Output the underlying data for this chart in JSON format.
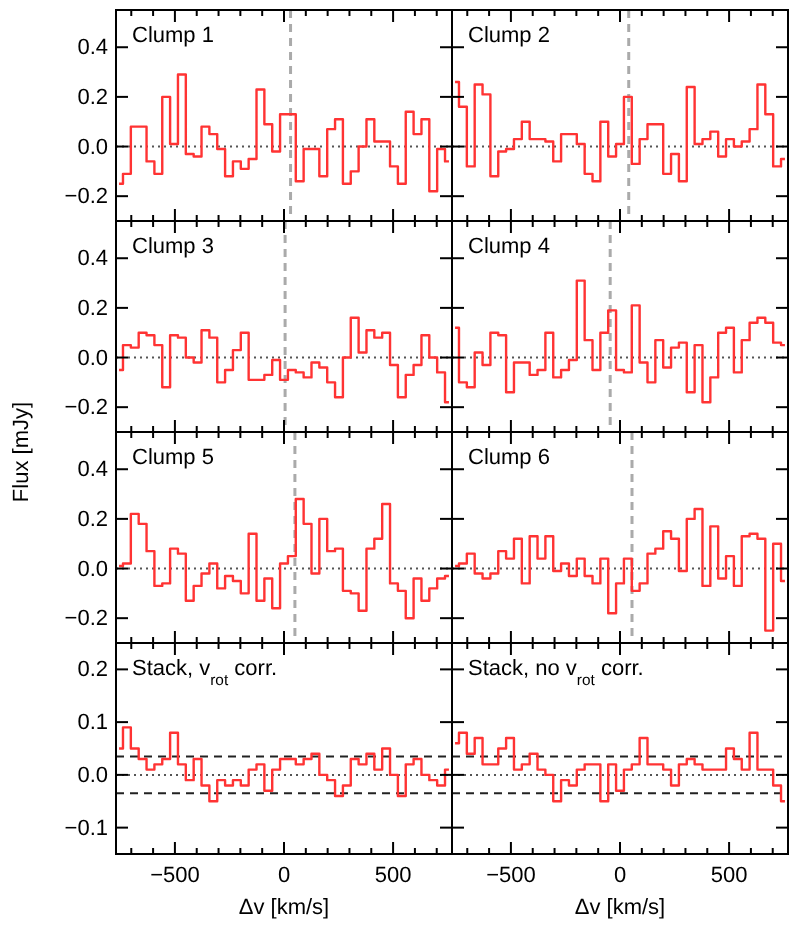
{
  "chart_data": [
    {
      "type": "step",
      "title": "Clump 1",
      "x": [
        -756,
        -720,
        -684,
        -648,
        -612,
        -576,
        -540,
        -504,
        -468,
        -432,
        -396,
        -360,
        -324,
        -288,
        -252,
        -216,
        -180,
        -144,
        -108,
        -72,
        -36,
        0,
        36,
        72,
        108,
        144,
        180,
        216,
        252,
        288,
        324,
        360,
        396,
        432,
        468,
        504,
        540,
        576,
        612,
        648,
        684,
        720,
        756
      ],
      "color": "#ff3333",
      "values": [
        -0.15,
        -0.11,
        0.08,
        0.08,
        -0.06,
        -0.11,
        0.2,
        0.01,
        0.29,
        -0.03,
        -0.04,
        0.08,
        0.05,
        -0.01,
        -0.12,
        -0.06,
        -0.09,
        -0.05,
        0.23,
        0.09,
        -0.02,
        0.13,
        0.13,
        -0.14,
        -0.01,
        -0.01,
        -0.12,
        0.07,
        0.11,
        -0.15,
        -0.1,
        0.0,
        0.11,
        0.02,
        0.02,
        -0.08,
        -0.15,
        0.14,
        0.05,
        0.11,
        -0.18,
        -0.01,
        -0.06
      ],
      "xlim": [
        -770,
        770
      ],
      "ylim": [
        -0.3,
        0.55
      ],
      "xticks": [
        {
          "value": -700,
          "label": null
        },
        {
          "value": -600,
          "label": null
        },
        -500,
        {
          "value": -400,
          "label": null
        },
        {
          "value": -300,
          "label": null
        },
        {
          "value": -200,
          "label": null
        },
        {
          "value": -100,
          "label": null
        },
        0,
        {
          "value": 100,
          "label": null
        },
        {
          "value": 200,
          "label": null
        },
        {
          "value": 300,
          "label": null
        },
        {
          "value": 400,
          "label": null
        },
        500,
        {
          "value": 600,
          "label": null
        },
        {
          "value": 700,
          "label": null
        }
      ],
      "yticks": [
        {
          "value": -0.2,
          "label": "−0.2"
        },
        {
          "value": 0,
          "label": "0.0"
        },
        {
          "value": 0.2,
          "label": "0.2"
        },
        {
          "value": 0.4,
          "label": "0.4"
        }
      ],
      "tick_labels": "y",
      "ref_lines": [
        {
          "axis": "y",
          "value": 0,
          "line_style": "dotted",
          "color": "#555555"
        },
        {
          "axis": "x",
          "value": 30,
          "line_style": "dashed",
          "color": "#aaaaaa"
        }
      ]
    },
    {
      "type": "step",
      "title": "Clump 2",
      "x": [
        -756,
        -720,
        -684,
        -648,
        -612,
        -576,
        -540,
        -504,
        -468,
        -432,
        -396,
        -360,
        -324,
        -288,
        -252,
        -216,
        -180,
        -144,
        -108,
        -72,
        -36,
        0,
        36,
        72,
        108,
        144,
        180,
        216,
        252,
        288,
        324,
        360,
        396,
        432,
        468,
        504,
        540,
        576,
        612,
        648,
        684,
        720,
        756
      ],
      "color": "#ff3333",
      "values": [
        0.26,
        0.16,
        -0.08,
        0.25,
        0.21,
        -0.12,
        -0.02,
        -0.01,
        0.03,
        0.1,
        0.03,
        0.03,
        0.02,
        -0.06,
        0.05,
        0.05,
        0.01,
        -0.11,
        -0.14,
        0.1,
        -0.04,
        0.01,
        0.2,
        -0.07,
        0.03,
        0.09,
        0.09,
        -0.11,
        -0.03,
        -0.14,
        0.24,
        0.01,
        0.03,
        0.06,
        -0.04,
        0.03,
        0.0,
        0.02,
        0.07,
        0.25,
        0.13,
        -0.08,
        -0.05
      ],
      "xlim": [
        -770,
        770
      ],
      "ylim": [
        -0.3,
        0.55
      ],
      "xticks": [
        {
          "value": -700,
          "label": null
        },
        {
          "value": -600,
          "label": null
        },
        -500,
        {
          "value": -400,
          "label": null
        },
        {
          "value": -300,
          "label": null
        },
        {
          "value": -200,
          "label": null
        },
        {
          "value": -100,
          "label": null
        },
        0,
        {
          "value": 100,
          "label": null
        },
        {
          "value": 200,
          "label": null
        },
        {
          "value": 300,
          "label": null
        },
        {
          "value": 400,
          "label": null
        },
        500,
        {
          "value": 600,
          "label": null
        },
        {
          "value": 700,
          "label": null
        }
      ],
      "yticks": [
        -0.2,
        0,
        0.2,
        0.4
      ],
      "tick_labels": false,
      "ref_lines": [
        {
          "axis": "y",
          "value": 0,
          "line_style": "dotted",
          "color": "#555555"
        },
        {
          "axis": "x",
          "value": 40,
          "line_style": "dashed",
          "color": "#aaaaaa"
        }
      ]
    },
    {
      "type": "step",
      "title": "Clump 3",
      "ylabel": "Flux [mJy]",
      "x": [
        -756,
        -720,
        -684,
        -648,
        -612,
        -576,
        -540,
        -504,
        -468,
        -432,
        -396,
        -360,
        -324,
        -288,
        -252,
        -216,
        -180,
        -144,
        -108,
        -72,
        -36,
        0,
        36,
        72,
        108,
        144,
        180,
        216,
        252,
        288,
        324,
        360,
        396,
        432,
        468,
        504,
        540,
        576,
        612,
        648,
        684,
        720,
        756
      ],
      "color": "#ff3333",
      "values": [
        -0.05,
        0.05,
        0.04,
        0.1,
        0.09,
        0.05,
        -0.12,
        0.09,
        0.08,
        0.0,
        -0.02,
        0.11,
        0.08,
        -0.1,
        -0.05,
        0.03,
        0.1,
        -0.09,
        -0.09,
        -0.07,
        -0.01,
        -0.09,
        -0.05,
        -0.06,
        -0.08,
        -0.02,
        -0.04,
        -0.1,
        -0.16,
        0.0,
        0.16,
        0.02,
        0.11,
        0.08,
        0.1,
        -0.03,
        -0.16,
        -0.07,
        -0.03,
        0.09,
        0.0,
        -0.06,
        -0.18
      ],
      "xlim": [
        -770,
        770
      ],
      "ylim": [
        -0.3,
        0.55
      ],
      "xticks": [
        {
          "value": -700,
          "label": null
        },
        {
          "value": -600,
          "label": null
        },
        -500,
        {
          "value": -400,
          "label": null
        },
        {
          "value": -300,
          "label": null
        },
        {
          "value": -200,
          "label": null
        },
        {
          "value": -100,
          "label": null
        },
        0,
        {
          "value": 100,
          "label": null
        },
        {
          "value": 200,
          "label": null
        },
        {
          "value": 300,
          "label": null
        },
        {
          "value": 400,
          "label": null
        },
        500,
        {
          "value": 600,
          "label": null
        },
        {
          "value": 700,
          "label": null
        }
      ],
      "yticks": [
        {
          "value": -0.2,
          "label": "−0.2"
        },
        {
          "value": 0,
          "label": "0.0"
        },
        {
          "value": 0.2,
          "label": "0.2"
        },
        {
          "value": 0.4,
          "label": "0.4"
        }
      ],
      "tick_labels": "y",
      "ref_lines": [
        {
          "axis": "y",
          "value": 0,
          "line_style": "dotted",
          "color": "#555555"
        },
        {
          "axis": "x",
          "value": 5,
          "line_style": "dashed",
          "color": "#aaaaaa"
        }
      ]
    },
    {
      "type": "step",
      "title": "Clump 4",
      "x": [
        -756,
        -720,
        -684,
        -648,
        -612,
        -576,
        -540,
        -504,
        -468,
        -432,
        -396,
        -360,
        -324,
        -288,
        -252,
        -216,
        -180,
        -144,
        -108,
        -72,
        -36,
        0,
        36,
        72,
        108,
        144,
        180,
        216,
        252,
        288,
        324,
        360,
        396,
        432,
        468,
        504,
        540,
        576,
        612,
        648,
        684,
        720,
        756
      ],
      "color": "#ff3333",
      "values": [
        0.12,
        -0.1,
        -0.12,
        0.02,
        -0.03,
        0.1,
        0.09,
        -0.14,
        -0.02,
        -0.02,
        -0.07,
        -0.05,
        0.1,
        -0.08,
        -0.05,
        -0.01,
        0.31,
        0.07,
        -0.05,
        0.1,
        0.19,
        -0.05,
        -0.06,
        0.21,
        -0.02,
        -0.1,
        0.07,
        -0.04,
        0.04,
        0.06,
        -0.14,
        0.05,
        -0.18,
        -0.08,
        0.1,
        0.12,
        -0.06,
        0.07,
        0.14,
        0.16,
        0.14,
        0.06,
        0.05
      ],
      "xlim": [
        -770,
        770
      ],
      "ylim": [
        -0.3,
        0.55
      ],
      "xticks": [
        {
          "value": -700,
          "label": null
        },
        {
          "value": -600,
          "label": null
        },
        -500,
        {
          "value": -400,
          "label": null
        },
        {
          "value": -300,
          "label": null
        },
        {
          "value": -200,
          "label": null
        },
        {
          "value": -100,
          "label": null
        },
        0,
        {
          "value": 100,
          "label": null
        },
        {
          "value": 200,
          "label": null
        },
        {
          "value": 300,
          "label": null
        },
        {
          "value": 400,
          "label": null
        },
        500,
        {
          "value": 600,
          "label": null
        },
        {
          "value": 700,
          "label": null
        }
      ],
      "yticks": [
        -0.2,
        0,
        0.2,
        0.4
      ],
      "tick_labels": false,
      "ref_lines": [
        {
          "axis": "y",
          "value": 0,
          "line_style": "dotted",
          "color": "#555555"
        },
        {
          "axis": "x",
          "value": -45,
          "line_style": "dashed",
          "color": "#aaaaaa"
        }
      ]
    },
    {
      "type": "step",
      "title": "Clump 5",
      "x": [
        -756,
        -720,
        -684,
        -648,
        -612,
        -576,
        -540,
        -504,
        -468,
        -432,
        -396,
        -360,
        -324,
        -288,
        -252,
        -216,
        -180,
        -144,
        -108,
        -72,
        -36,
        0,
        36,
        72,
        108,
        144,
        180,
        216,
        252,
        288,
        324,
        360,
        396,
        432,
        468,
        504,
        540,
        576,
        612,
        648,
        684,
        720,
        756
      ],
      "color": "#ff3333",
      "values": [
        0.01,
        0.02,
        0.22,
        0.18,
        0.07,
        -0.07,
        -0.06,
        0.08,
        0.06,
        -0.13,
        -0.07,
        -0.02,
        0.02,
        -0.08,
        -0.03,
        -0.05,
        -0.1,
        0.14,
        -0.13,
        -0.04,
        -0.16,
        0.02,
        0.05,
        0.28,
        0.18,
        -0.02,
        0.2,
        0.07,
        0.08,
        -0.09,
        -0.1,
        -0.17,
        0.08,
        0.12,
        0.26,
        -0.06,
        -0.09,
        -0.2,
        -0.04,
        -0.13,
        -0.08,
        -0.04,
        -0.03
      ],
      "xlim": [
        -770,
        770
      ],
      "ylim": [
        -0.3,
        0.55
      ],
      "xticks": [
        {
          "value": -700,
          "label": null
        },
        {
          "value": -600,
          "label": null
        },
        -500,
        {
          "value": -400,
          "label": null
        },
        {
          "value": -300,
          "label": null
        },
        {
          "value": -200,
          "label": null
        },
        {
          "value": -100,
          "label": null
        },
        0,
        {
          "value": 100,
          "label": null
        },
        {
          "value": 200,
          "label": null
        },
        {
          "value": 300,
          "label": null
        },
        {
          "value": 400,
          "label": null
        },
        500,
        {
          "value": 600,
          "label": null
        },
        {
          "value": 700,
          "label": null
        }
      ],
      "yticks": [
        {
          "value": -0.2,
          "label": "−0.2"
        },
        {
          "value": 0,
          "label": "0.0"
        },
        {
          "value": 0.2,
          "label": "0.2"
        },
        {
          "value": 0.4,
          "label": "0.4"
        }
      ],
      "tick_labels": "y",
      "ref_lines": [
        {
          "axis": "y",
          "value": 0,
          "line_style": "dotted",
          "color": "#555555"
        },
        {
          "axis": "x",
          "value": 50,
          "line_style": "dashed",
          "color": "#aaaaaa"
        }
      ]
    },
    {
      "type": "step",
      "title": "Clump 6",
      "x": [
        -756,
        -720,
        -684,
        -648,
        -612,
        -576,
        -540,
        -504,
        -468,
        -432,
        -396,
        -360,
        -324,
        -288,
        -252,
        -216,
        -180,
        -144,
        -108,
        -72,
        -36,
        0,
        36,
        72,
        108,
        144,
        180,
        216,
        252,
        288,
        324,
        360,
        396,
        432,
        468,
        504,
        540,
        576,
        612,
        648,
        684,
        720,
        756
      ],
      "color": "#ff3333",
      "values": [
        0.01,
        0.02,
        0.06,
        -0.02,
        -0.04,
        -0.02,
        0.07,
        0.04,
        0.12,
        -0.06,
        0.13,
        0.04,
        0.13,
        -0.01,
        0.02,
        -0.03,
        0.04,
        -0.03,
        -0.06,
        0.04,
        -0.18,
        -0.06,
        0.04,
        -0.09,
        -0.06,
        0.06,
        0.08,
        0.15,
        0.12,
        -0.01,
        0.2,
        0.24,
        -0.07,
        0.17,
        -0.04,
        0.05,
        -0.07,
        0.13,
        0.14,
        0.12,
        -0.25,
        0.1,
        -0.05
      ],
      "xlim": [
        -770,
        770
      ],
      "ylim": [
        -0.3,
        0.55
      ],
      "xticks": [
        {
          "value": -700,
          "label": null
        },
        {
          "value": -600,
          "label": null
        },
        -500,
        {
          "value": -400,
          "label": null
        },
        {
          "value": -300,
          "label": null
        },
        {
          "value": -200,
          "label": null
        },
        {
          "value": -100,
          "label": null
        },
        0,
        {
          "value": 100,
          "label": null
        },
        {
          "value": 200,
          "label": null
        },
        {
          "value": 300,
          "label": null
        },
        {
          "value": 400,
          "label": null
        },
        500,
        {
          "value": 600,
          "label": null
        },
        {
          "value": 700,
          "label": null
        }
      ],
      "yticks": [
        -0.2,
        0,
        0.2,
        0.4
      ],
      "tick_labels": false,
      "ref_lines": [
        {
          "axis": "y",
          "value": 0,
          "line_style": "dotted",
          "color": "#555555"
        },
        {
          "axis": "x",
          "value": 55,
          "line_style": "dashed",
          "color": "#aaaaaa"
        }
      ]
    },
    {
      "type": "step",
      "title": "Stack, v$_{rot}$ corr.",
      "xlabel": "Δv [km/s]",
      "x": [
        -756,
        -720,
        -684,
        -648,
        -612,
        -576,
        -540,
        -504,
        -468,
        -432,
        -396,
        -360,
        -324,
        -288,
        -252,
        -216,
        -180,
        -144,
        -108,
        -72,
        -36,
        0,
        36,
        72,
        108,
        144,
        180,
        216,
        252,
        288,
        324,
        360,
        396,
        432,
        468,
        504,
        540,
        576,
        612,
        648,
        684,
        720,
        756
      ],
      "color": "#ff3333",
      "values": [
        0.05,
        0.09,
        0.05,
        0.03,
        0.01,
        0.02,
        0.03,
        0.08,
        0.02,
        -0.01,
        0.03,
        -0.02,
        -0.05,
        -0.01,
        -0.02,
        -0.01,
        -0.02,
        0.01,
        0.02,
        -0.03,
        0.01,
        0.03,
        0.03,
        0.02,
        0.03,
        0.04,
        0.0,
        -0.01,
        -0.04,
        -0.02,
        0.03,
        0.02,
        0.04,
        0.01,
        0.05,
        0.0,
        -0.04,
        0.02,
        0.03,
        0.0,
        -0.01,
        -0.02,
        0.01
      ],
      "xlim": [
        -770,
        770
      ],
      "ylim": [
        -0.15,
        0.25
      ],
      "xticks": [
        {
          "value": -700,
          "label": null
        },
        {
          "value": -600,
          "label": null
        },
        {
          "value": -500,
          "label": "−500"
        },
        {
          "value": -400,
          "label": null
        },
        {
          "value": -300,
          "label": null
        },
        {
          "value": -200,
          "label": null
        },
        {
          "value": -100,
          "label": null
        },
        0,
        {
          "value": 100,
          "label": null
        },
        {
          "value": 200,
          "label": null
        },
        {
          "value": 300,
          "label": null
        },
        {
          "value": 400,
          "label": null
        },
        500,
        {
          "value": 600,
          "label": null
        },
        {
          "value": 700,
          "label": null
        }
      ],
      "yticks": [
        {
          "value": -0.1,
          "label": "−0.1"
        },
        {
          "value": 0,
          "label": "0.0"
        },
        {
          "value": 0.1,
          "label": "0.1"
        },
        {
          "value": 0.2,
          "label": "0.2"
        }
      ],
      "ref_lines": [
        {
          "axis": "y",
          "value": 0,
          "line_style": "dotted",
          "color": "#555555"
        },
        {
          "axis": "y",
          "value": 0.035,
          "line_style": "dashed",
          "color": "#222222"
        },
        {
          "axis": "y",
          "value": -0.035,
          "line_style": "dashed",
          "color": "#222222"
        }
      ]
    },
    {
      "type": "step",
      "title": "Stack, no v$_{rot}$ corr.",
      "xlabel": "Δv [km/s]",
      "x": [
        -756,
        -720,
        -684,
        -648,
        -612,
        -576,
        -540,
        -504,
        -468,
        -432,
        -396,
        -360,
        -324,
        -288,
        -252,
        -216,
        -180,
        -144,
        -108,
        -72,
        -36,
        0,
        36,
        72,
        108,
        144,
        180,
        216,
        252,
        288,
        324,
        360,
        396,
        432,
        468,
        504,
        540,
        576,
        612,
        648,
        684,
        720,
        756
      ],
      "color": "#ff3333",
      "values": [
        0.06,
        0.08,
        0.04,
        0.07,
        0.02,
        0.02,
        0.05,
        0.07,
        0.01,
        0.02,
        0.04,
        0.01,
        0.0,
        -0.05,
        -0.01,
        -0.02,
        0.01,
        0.02,
        0.02,
        -0.05,
        0.02,
        -0.03,
        0.01,
        0.02,
        0.07,
        0.02,
        0.02,
        0.01,
        -0.02,
        0.02,
        0.03,
        0.02,
        0.01,
        0.01,
        0.01,
        0.05,
        0.03,
        0.01,
        0.08,
        0.01,
        0.01,
        -0.02,
        -0.05
      ],
      "xlim": [
        -770,
        770
      ],
      "ylim": [
        -0.15,
        0.25
      ],
      "xticks": [
        {
          "value": -700,
          "label": null
        },
        {
          "value": -600,
          "label": null
        },
        {
          "value": -500,
          "label": "−500"
        },
        {
          "value": -400,
          "label": null
        },
        {
          "value": -300,
          "label": null
        },
        {
          "value": -200,
          "label": null
        },
        {
          "value": -100,
          "label": null
        },
        0,
        {
          "value": 100,
          "label": null
        },
        {
          "value": 200,
          "label": null
        },
        {
          "value": 300,
          "label": null
        },
        {
          "value": 400,
          "label": null
        },
        500,
        {
          "value": 600,
          "label": null
        },
        {
          "value": 700,
          "label": null
        }
      ],
      "yticks": [
        -0.1,
        0,
        0.1,
        0.2
      ],
      "tick_labels": "x",
      "ref_lines": [
        {
          "axis": "y",
          "value": 0,
          "line_style": "dotted",
          "color": "#555555"
        },
        {
          "axis": "y",
          "value": 0.035,
          "line_style": "dashed",
          "color": "#222222"
        },
        {
          "axis": "y",
          "value": -0.035,
          "line_style": "dashed",
          "color": "#222222"
        }
      ]
    }
  ]
}
